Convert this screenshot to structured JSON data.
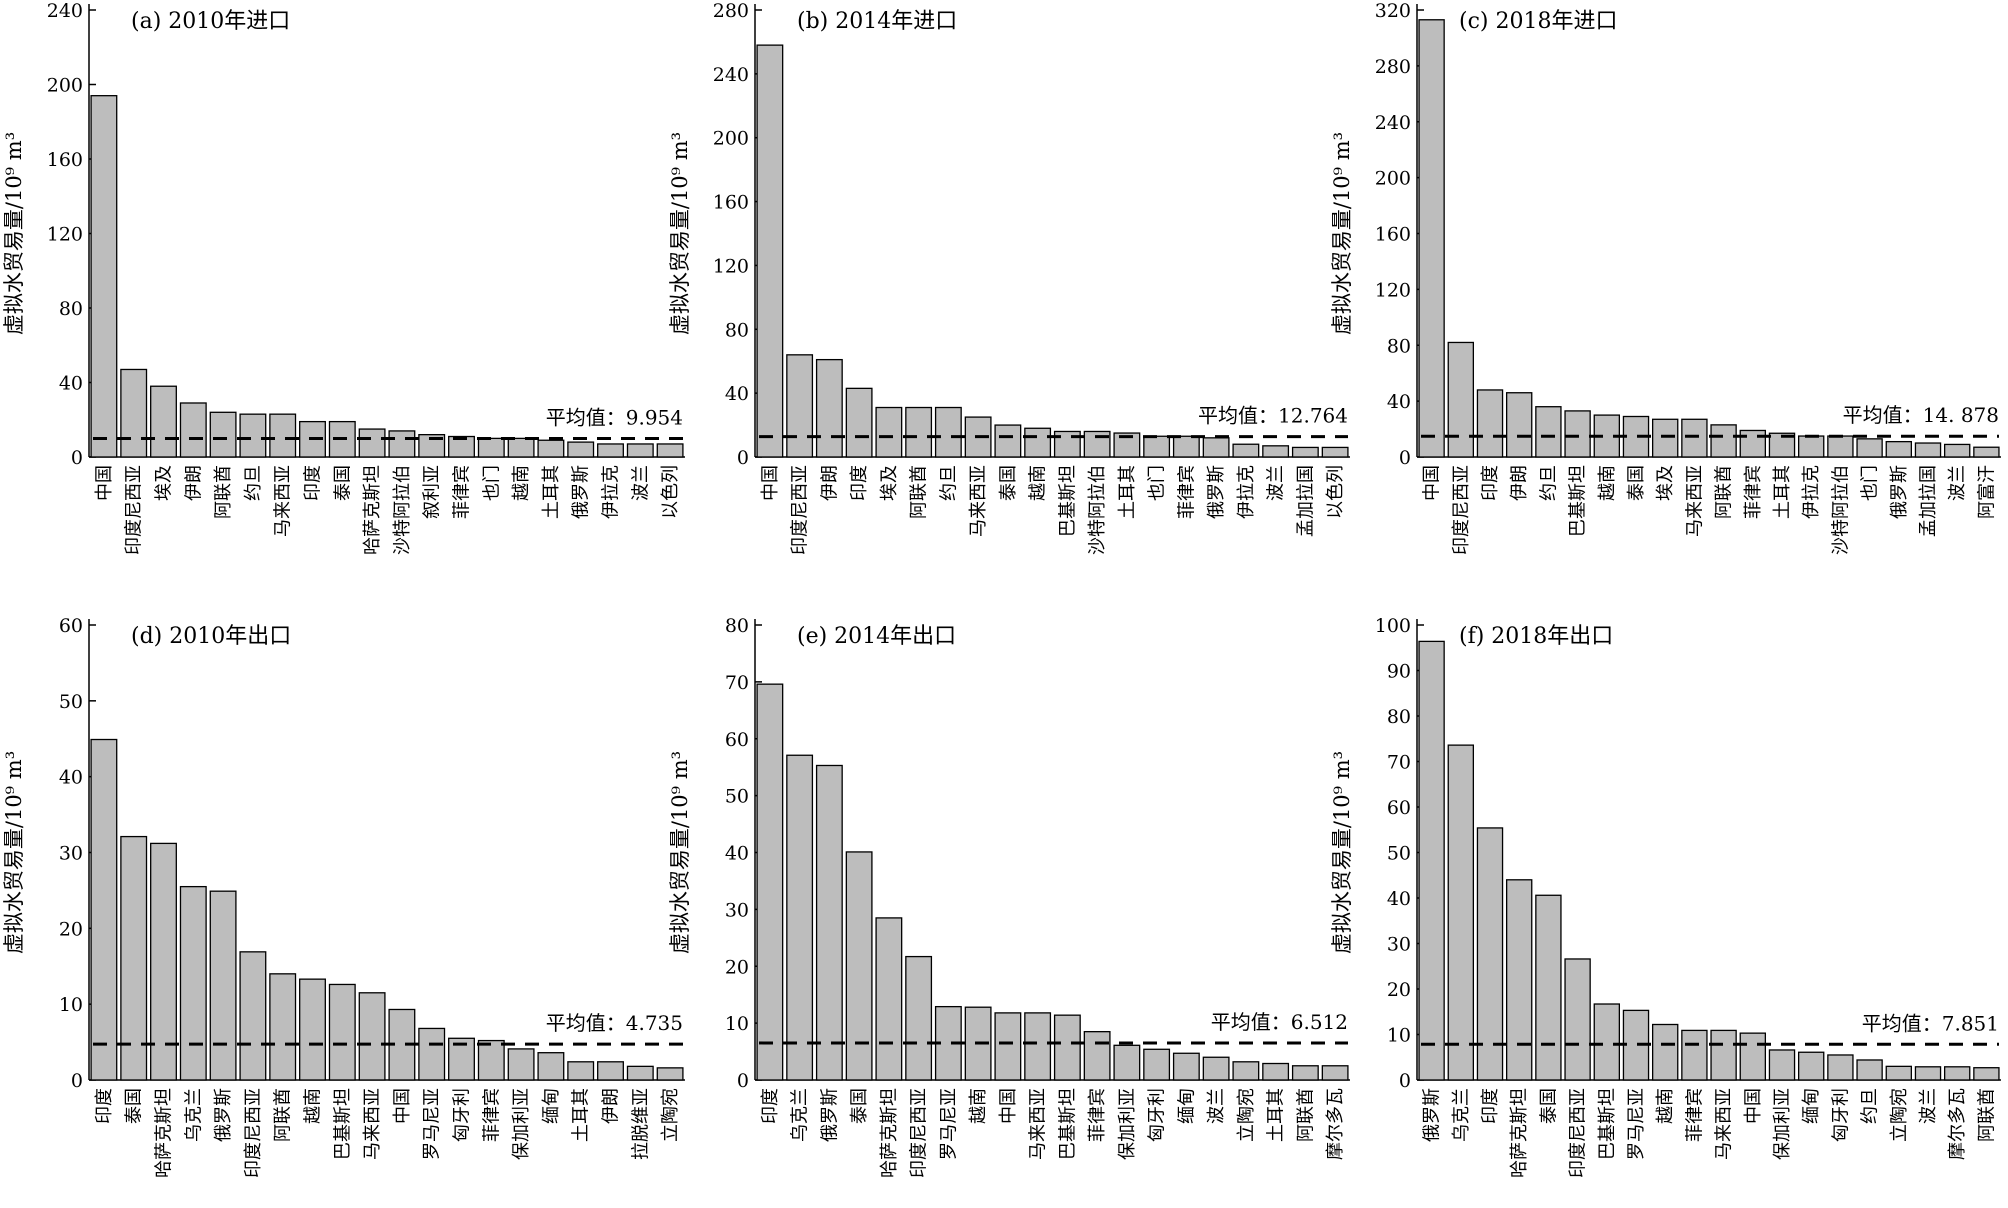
{
  "chart_data": [
    {
      "type": "bar",
      "title": "(a) 2010年进口",
      "ylabel": "虚拟水贸易量/10⁹ m³",
      "ylim": [
        0,
        240
      ],
      "yticks": [
        0,
        40,
        80,
        120,
        160,
        200,
        240
      ],
      "categories": [
        "中国",
        "印度尼西亚",
        "埃及",
        "伊朗",
        "阿联酋",
        "约旦",
        "马来西亚",
        "印度",
        "泰国",
        "哈萨克斯坦",
        "沙特阿拉伯",
        "叙利亚",
        "菲律宾",
        "也门",
        "越南",
        "土耳其",
        "俄罗斯",
        "伊拉克",
        "波兰",
        "以色列"
      ],
      "values": [
        194,
        47,
        38,
        29,
        24,
        23,
        23,
        19,
        19,
        15,
        14,
        12,
        11,
        10,
        10,
        9,
        8,
        7,
        7,
        7
      ],
      "mean_label": "平均值：9.954",
      "mean_value": 9.954,
      "color": "#bdbdbd"
    },
    {
      "type": "bar",
      "title": "(b) 2014年进口",
      "ylabel": "虚拟水贸易量/10⁹ m³",
      "ylim": [
        0,
        280
      ],
      "yticks": [
        0,
        40,
        80,
        120,
        160,
        200,
        240,
        280
      ],
      "categories": [
        "中国",
        "印度尼西亚",
        "伊朗",
        "印度",
        "埃及",
        "阿联酋",
        "约旦",
        "马来西亚",
        "泰国",
        "越南",
        "巴基斯坦",
        "沙特阿拉伯",
        "土耳其",
        "也门",
        "菲律宾",
        "俄罗斯",
        "伊拉克",
        "波兰",
        "孟加拉国",
        "以色列"
      ],
      "values": [
        258,
        64,
        61,
        43,
        31,
        31,
        31,
        25,
        20,
        18,
        16,
        16,
        15,
        13,
        13,
        12,
        8,
        7,
        6,
        6
      ],
      "mean_label": "平均值：12.764",
      "mean_value": 12.764,
      "color": "#bdbdbd"
    },
    {
      "type": "bar",
      "title": "(c) 2018年进口",
      "ylabel": "虚拟水贸易量/10⁹ m³",
      "ylim": [
        0,
        320
      ],
      "yticks": [
        0,
        40,
        80,
        120,
        160,
        200,
        240,
        280,
        320
      ],
      "categories": [
        "中国",
        "印度尼西亚",
        "印度",
        "伊朗",
        "约旦",
        "巴基斯坦",
        "越南",
        "泰国",
        "埃及",
        "马来西亚",
        "阿联酋",
        "菲律宾",
        "土耳其",
        "伊拉克",
        "沙特阿拉伯",
        "也门",
        "俄罗斯",
        "孟加拉国",
        "波兰",
        "阿富汗"
      ],
      "values": [
        313,
        82,
        48,
        46,
        36,
        33,
        30,
        29,
        27,
        27,
        23,
        19,
        17,
        15,
        15,
        13,
        11,
        10,
        9,
        7
      ],
      "mean_label": "平均值：14. 878",
      "mean_value": 14.878,
      "color": "#bdbdbd"
    },
    {
      "type": "bar",
      "title": "(d) 2010年出口",
      "ylabel": "虚拟水贸易量/10⁹ m³",
      "ylim": [
        0,
        60
      ],
      "yticks": [
        0,
        10,
        20,
        30,
        40,
        50,
        60
      ],
      "categories": [
        "印度",
        "泰国",
        "哈萨克斯坦",
        "乌克兰",
        "俄罗斯",
        "印度尼西亚",
        "阿联酋",
        "越南",
        "巴基斯坦",
        "马来西亚",
        "中国",
        "罗马尼亚",
        "匈牙利",
        "菲律宾",
        "保加利亚",
        "缅甸",
        "土耳其",
        "伊朗",
        "拉脱维亚",
        "立陶宛"
      ],
      "values": [
        44.9,
        32.1,
        31.2,
        25.5,
        24.9,
        16.9,
        14,
        13.3,
        12.6,
        11.5,
        9.3,
        6.8,
        5.5,
        5.2,
        4.1,
        3.6,
        2.4,
        2.4,
        1.8,
        1.6
      ],
      "mean_label": "平均值：4.735",
      "mean_value": 4.735,
      "color": "#bdbdbd"
    },
    {
      "type": "bar",
      "title": "(e) 2014年出口",
      "ylabel": "虚拟水贸易量/10⁹ m³",
      "ylim": [
        0,
        80
      ],
      "yticks": [
        0,
        10,
        20,
        30,
        40,
        50,
        60,
        70,
        80
      ],
      "categories": [
        "印度",
        "乌克兰",
        "俄罗斯",
        "泰国",
        "哈萨克斯坦",
        "印度尼西亚",
        "罗马尼亚",
        "越南",
        "中国",
        "马来西亚",
        "巴基斯坦",
        "菲律宾",
        "保加利亚",
        "匈牙利",
        "缅甸",
        "波兰",
        "立陶宛",
        "土耳其",
        "阿联酋",
        "摩尔多瓦"
      ],
      "values": [
        69.6,
        57.1,
        55.3,
        40.1,
        28.5,
        21.7,
        12.9,
        12.8,
        11.8,
        11.8,
        11.4,
        8.5,
        6.1,
        5.4,
        4.7,
        4,
        3.2,
        2.9,
        2.5,
        2.5
      ],
      "mean_label": "平均值：6.512",
      "mean_value": 6.512,
      "color": "#bdbdbd"
    },
    {
      "type": "bar",
      "title": "(f) 2018年出口",
      "ylabel": "虚拟水贸易量/10⁹ m³",
      "ylim": [
        0,
        100
      ],
      "yticks": [
        0,
        10,
        20,
        30,
        40,
        50,
        60,
        70,
        80,
        90,
        100
      ],
      "categories": [
        "俄罗斯",
        "乌克兰",
        "印度",
        "哈萨克斯坦",
        "泰国",
        "印度尼西亚",
        "巴基斯坦",
        "罗马尼亚",
        "越南",
        "菲律宾",
        "马来西亚",
        "中国",
        "保加利亚",
        "缅甸",
        "匈牙利",
        "约旦",
        "立陶宛",
        "波兰",
        "摩尔多瓦",
        "阿联酋"
      ],
      "values": [
        96.4,
        73.6,
        55.4,
        44,
        40.6,
        26.6,
        16.7,
        15.3,
        12.2,
        10.9,
        10.9,
        10.3,
        6.6,
        6.1,
        5.5,
        4.4,
        3,
        2.9,
        2.9,
        2.7
      ],
      "mean_label": "平均值：7.851",
      "mean_value": 7.851,
      "color": "#bdbdbd"
    }
  ]
}
